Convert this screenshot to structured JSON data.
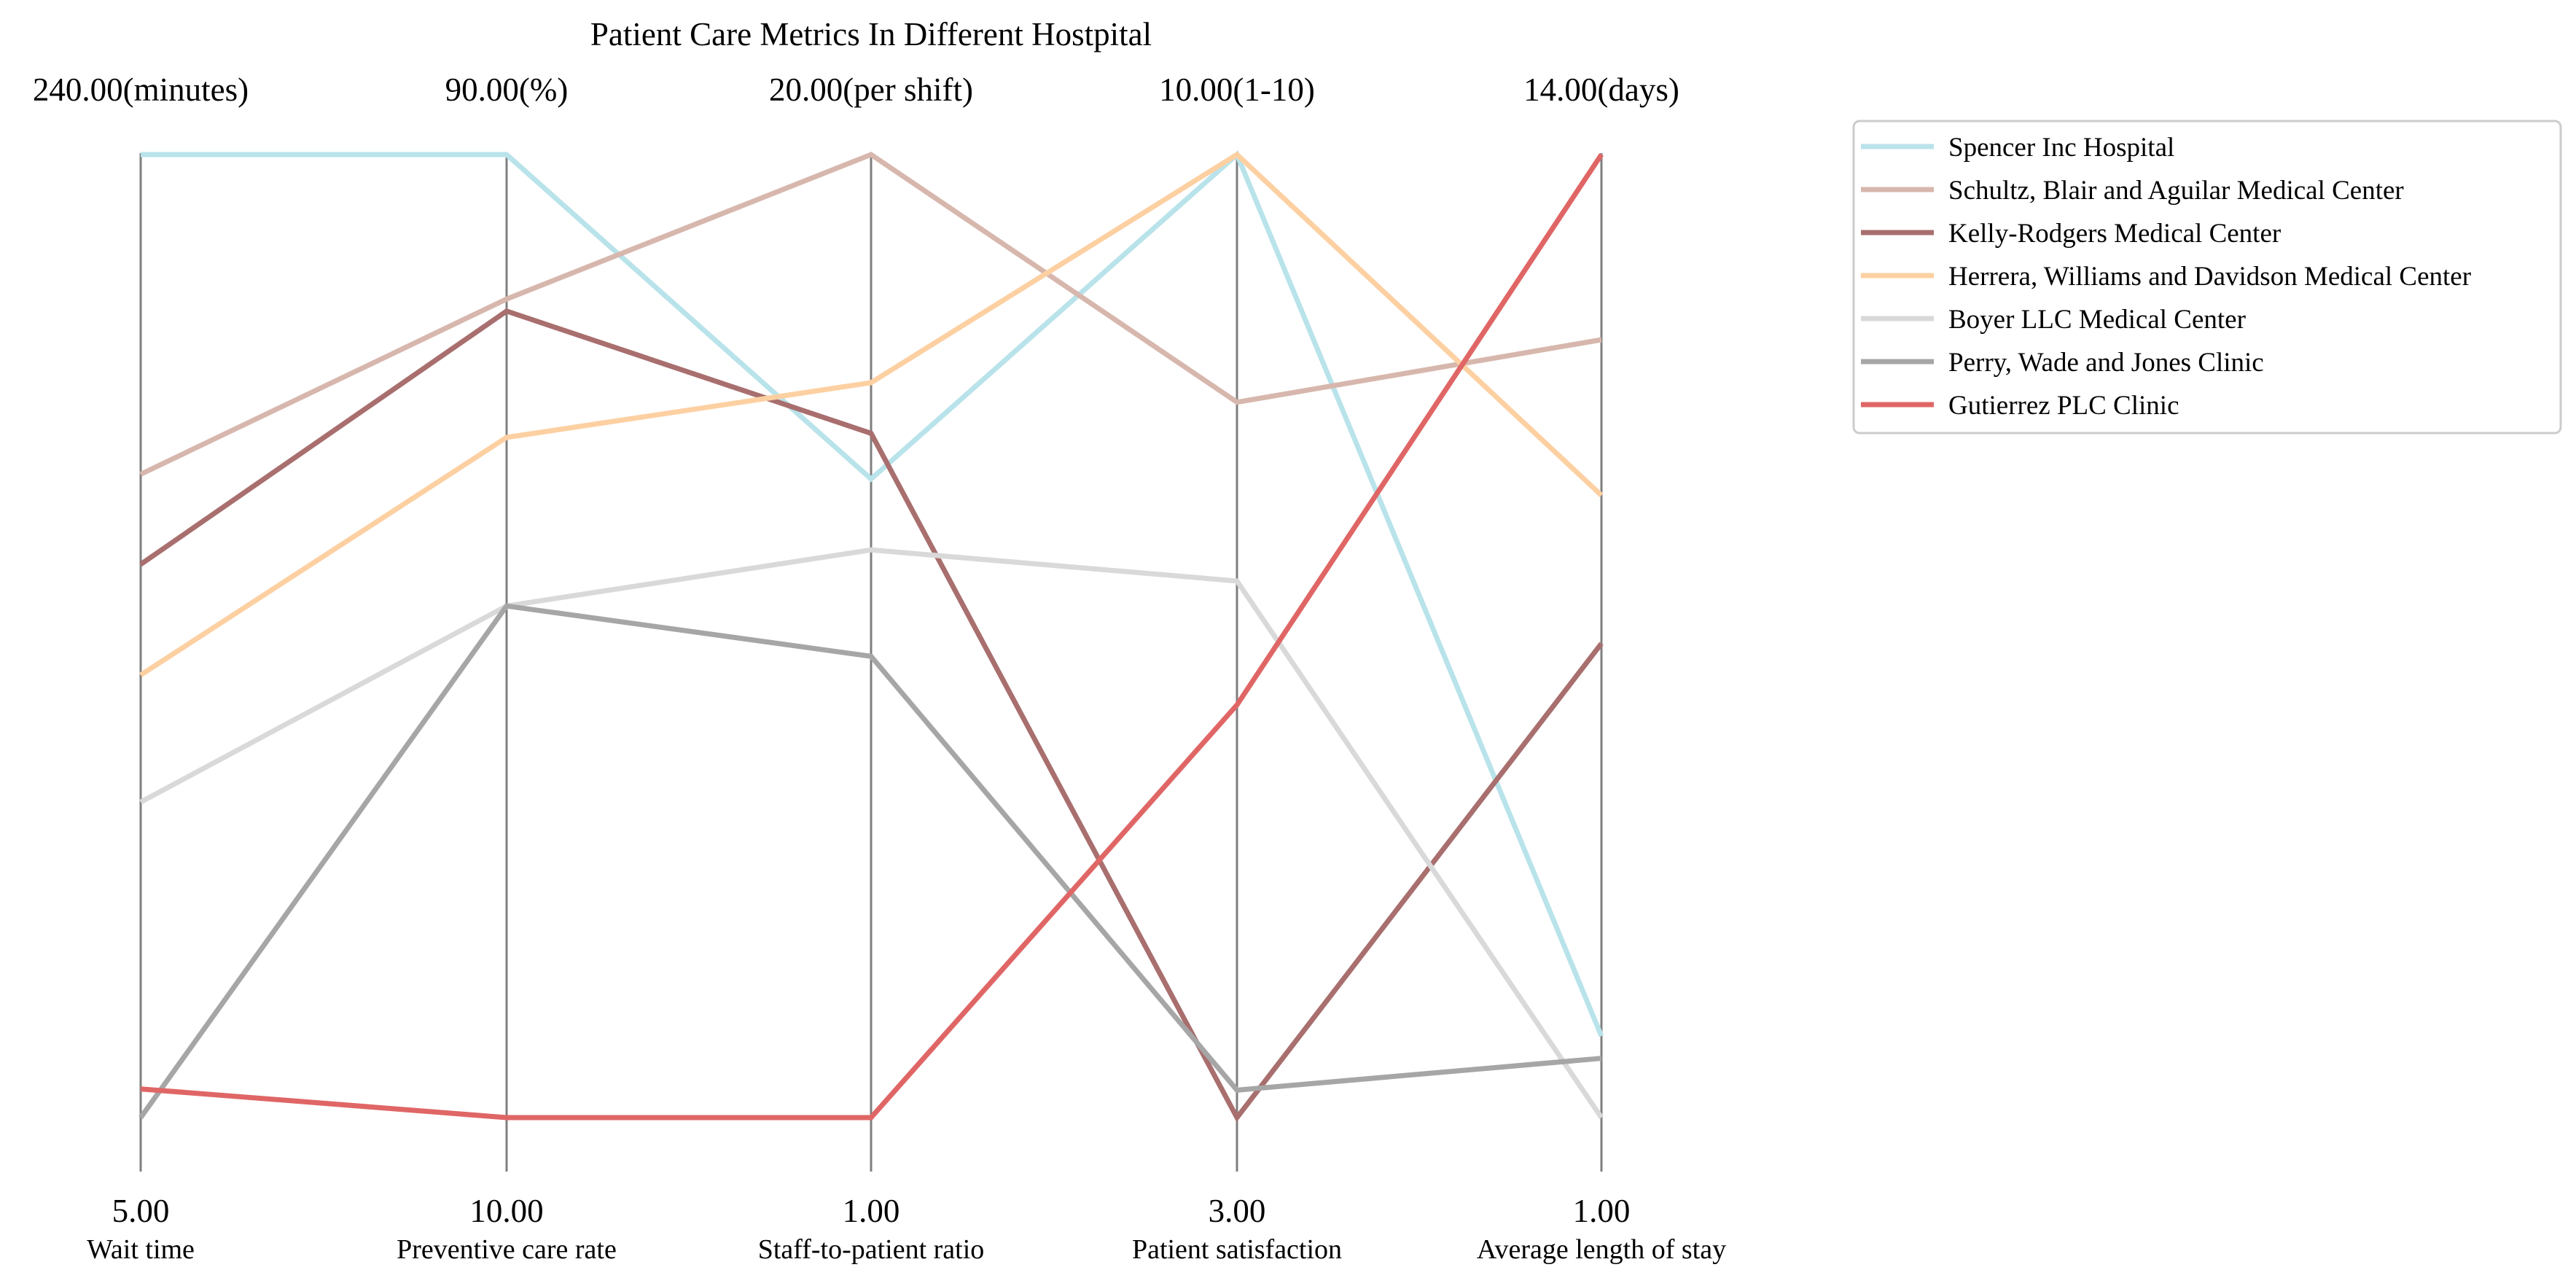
{
  "chart_data": {
    "type": "parallel_coordinates",
    "title": "Patient Care Metrics In Different Hostpital",
    "axes": [
      {
        "name": "Wait time",
        "min": 5,
        "max": 240,
        "min_label": "5.00",
        "max_label": "240.00(minutes)"
      },
      {
        "name": "Preventive care rate",
        "min": 10,
        "max": 90,
        "min_label": "10.00",
        "max_label": "90.00(%)"
      },
      {
        "name": "Staff-to-patient ratio",
        "min": 1,
        "max": 20,
        "min_label": "1.00",
        "max_label": "20.00(per shift)"
      },
      {
        "name": "Patient satisfaction",
        "min": 3,
        "max": 10,
        "min_label": "3.00",
        "max_label": "10.00(1-10)"
      },
      {
        "name": "Average length of stay",
        "min": 1,
        "max": 14,
        "min_label": "1.00",
        "max_label": "14.00(days)"
      }
    ],
    "series": [
      {
        "name": "Spencer Inc  Hospital",
        "color": "#b9e3ea",
        "values": [
          240,
          90,
          13.6,
          10,
          2.1
        ]
      },
      {
        "name": "Schultz, Blair and Aguilar  Medical Center",
        "color": "#d7b7ad",
        "values": [
          162,
          78,
          20,
          8.2,
          11.5
        ]
      },
      {
        "name": "Kelly-Rodgers  Medical Center",
        "color": "#a86f6e",
        "values": [
          140,
          77,
          14.5,
          3,
          7.4
        ]
      },
      {
        "name": "Herrera, Williams and Davidson  Medical Center",
        "color": "#fdd0a2",
        "values": [
          113,
          66.5,
          15.5,
          10,
          9.4
        ]
      },
      {
        "name": "Boyer LLC  Medical Center",
        "color": "#d9d9d9",
        "values": [
          82,
          52.5,
          12.2,
          6.9,
          1
        ]
      },
      {
        "name": "Perry, Wade and Jones  Clinic",
        "color": "#a6a6a6",
        "values": [
          5,
          52.5,
          10.1,
          3.2,
          1.8
        ]
      },
      {
        "name": "Gutierrez PLC  Clinic",
        "color": "#e06666",
        "values": [
          12,
          10,
          1,
          6,
          14
        ]
      }
    ],
    "legend_position": "top-right",
    "grid": false
  }
}
